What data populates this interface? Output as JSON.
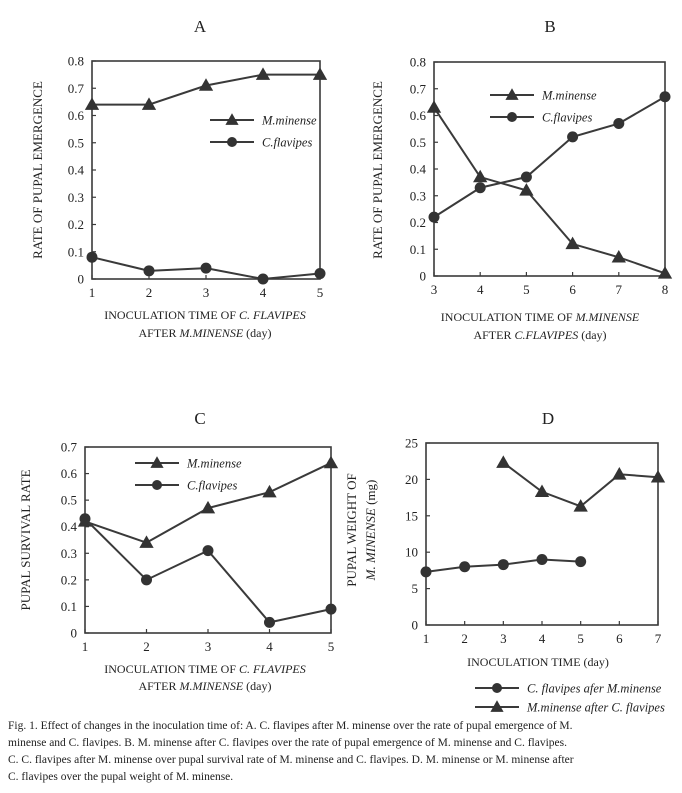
{
  "chart_data": [
    {
      "id": "A",
      "type": "line",
      "title": "A",
      "xlabel": "INOCULATION TIME OF C. FLAVIPES AFTER M.MINENSE",
      "xlabel_parts": [
        "INOCULATION TIME OF ",
        "C. FLAVIPES",
        "AFTER ",
        "M.MINENSE",
        " (day)"
      ],
      "ylabel": "RATE OF PUPAL EMERGENCE",
      "x_ticks": [
        "1",
        "2",
        "3",
        "4",
        "5"
      ],
      "y_ticks": [
        "0",
        "0.1",
        "0.2",
        "0.3",
        "0.4",
        "0.5",
        "0.6",
        "0.7",
        "0.8"
      ],
      "xlim": [
        1,
        5
      ],
      "ylim": [
        0,
        0.8
      ],
      "legend_position": "right",
      "series": [
        {
          "name": "M.minense",
          "marker": "triangle",
          "x": [
            1,
            2,
            3,
            4,
            5
          ],
          "values": [
            0.64,
            0.64,
            0.71,
            0.75,
            0.75
          ]
        },
        {
          "name": "C.flavipes",
          "marker": "circle",
          "x": [
            1,
            2,
            3,
            4,
            5
          ],
          "values": [
            0.08,
            0.03,
            0.04,
            0.0,
            0.02
          ]
        }
      ]
    },
    {
      "id": "B",
      "type": "line",
      "title": "B",
      "xlabel": "INOCULATION TIME OF M.MINENSE AFTER C.FLAVIPES",
      "xlabel_parts": [
        "INOCULATION TIME OF ",
        "M.MINENSE",
        "AFTER ",
        "C.FLAVIPES",
        " (day)"
      ],
      "ylabel": "RATE OF PUPAL EMERGENCE",
      "x_ticks": [
        "3",
        "4",
        "5",
        "6",
        "7",
        "8"
      ],
      "y_ticks": [
        "0",
        "0.1",
        "0.2",
        "0.3",
        "0.4",
        "0.5",
        "0.6",
        "0.7",
        "0.8"
      ],
      "xlim": [
        3,
        8
      ],
      "ylim": [
        0,
        0.8
      ],
      "legend_position": "top-center",
      "series": [
        {
          "name": "M.minense",
          "marker": "triangle",
          "x": [
            3,
            4,
            5,
            6,
            7,
            8
          ],
          "values": [
            0.63,
            0.37,
            0.32,
            0.12,
            0.07,
            0.01
          ]
        },
        {
          "name": "C.flavipes",
          "marker": "circle",
          "x": [
            3,
            4,
            5,
            6,
            7,
            8
          ],
          "values": [
            0.22,
            0.33,
            0.37,
            0.52,
            0.57,
            0.67
          ]
        }
      ]
    },
    {
      "id": "C",
      "type": "line",
      "title": "C",
      "xlabel": "INOCULATION TIME OF C. FLAVIPES AFTER M.MINENSE",
      "xlabel_parts": [
        "INOCULATION TIME OF ",
        "C. FLAVIPES",
        "AFTER ",
        "M.MINENSE",
        " (day)"
      ],
      "ylabel": "PUPAL SURVIVAL RATE",
      "x_ticks": [
        "1",
        "2",
        "3",
        "4",
        "5"
      ],
      "y_ticks": [
        "0",
        "0.1",
        "0.2",
        "0.3",
        "0.4",
        "0.5",
        "0.6",
        "0.7"
      ],
      "xlim": [
        1,
        5
      ],
      "ylim": [
        0,
        0.7
      ],
      "legend_position": "top-center",
      "series": [
        {
          "name": "M.minense",
          "marker": "triangle",
          "x": [
            1,
            2,
            3,
            4,
            5
          ],
          "values": [
            0.42,
            0.34,
            0.47,
            0.53,
            0.64
          ]
        },
        {
          "name": "C.flavipes",
          "marker": "circle",
          "x": [
            1,
            2,
            3,
            4,
            5
          ],
          "values": [
            0.43,
            0.2,
            0.31,
            0.04,
            0.09
          ]
        }
      ]
    },
    {
      "id": "D",
      "type": "line",
      "title": "D",
      "xlabel": "INOCULATION TIME (day)",
      "ylabel": "PUPAL WEIGHT OF M. MINENSE (mg)",
      "ylabel_parts": [
        "PUPAL WEIGHT OF",
        "M. MINENSE",
        " (mg)"
      ],
      "x_ticks": [
        "1",
        "2",
        "3",
        "4",
        "5",
        "6",
        "7"
      ],
      "y_ticks": [
        "0",
        "5",
        "10",
        "15",
        "20",
        "25"
      ],
      "xlim": [
        1,
        7
      ],
      "ylim": [
        0,
        25
      ],
      "legend_position": "bottom",
      "series": [
        {
          "name": "C. flavipes afer M.minense",
          "marker": "circle",
          "x": [
            1,
            2,
            3,
            4,
            5
          ],
          "values": [
            7.3,
            8.0,
            8.3,
            9.0,
            8.7
          ]
        },
        {
          "name": "M.minense after C. flavipes",
          "marker": "triangle",
          "x": [
            3,
            4,
            5,
            6,
            7
          ],
          "values": [
            22.3,
            18.3,
            16.3,
            20.7,
            20.3
          ]
        }
      ]
    }
  ],
  "caption": {
    "line1": "Fig. 1. Effect of changes in the inoculation time of: A. C. flavipes after M. minense over the rate of pupal emergence of M.",
    "line2": "minense and C. flavipes. B. M. minense after C. flavipes over the rate of pupal emergence of M. minense and C. flavipes.",
    "line3": "C. C. flavipes after M. minense over pupal survival rate of M. minense and C. flavipes. D. M. minense or M. minense after",
    "line4": "C. flavipes over the pupal weight of M. minense."
  },
  "colors": {
    "line": "#3a3a3a",
    "marker": "#333333",
    "text": "#222222"
  }
}
